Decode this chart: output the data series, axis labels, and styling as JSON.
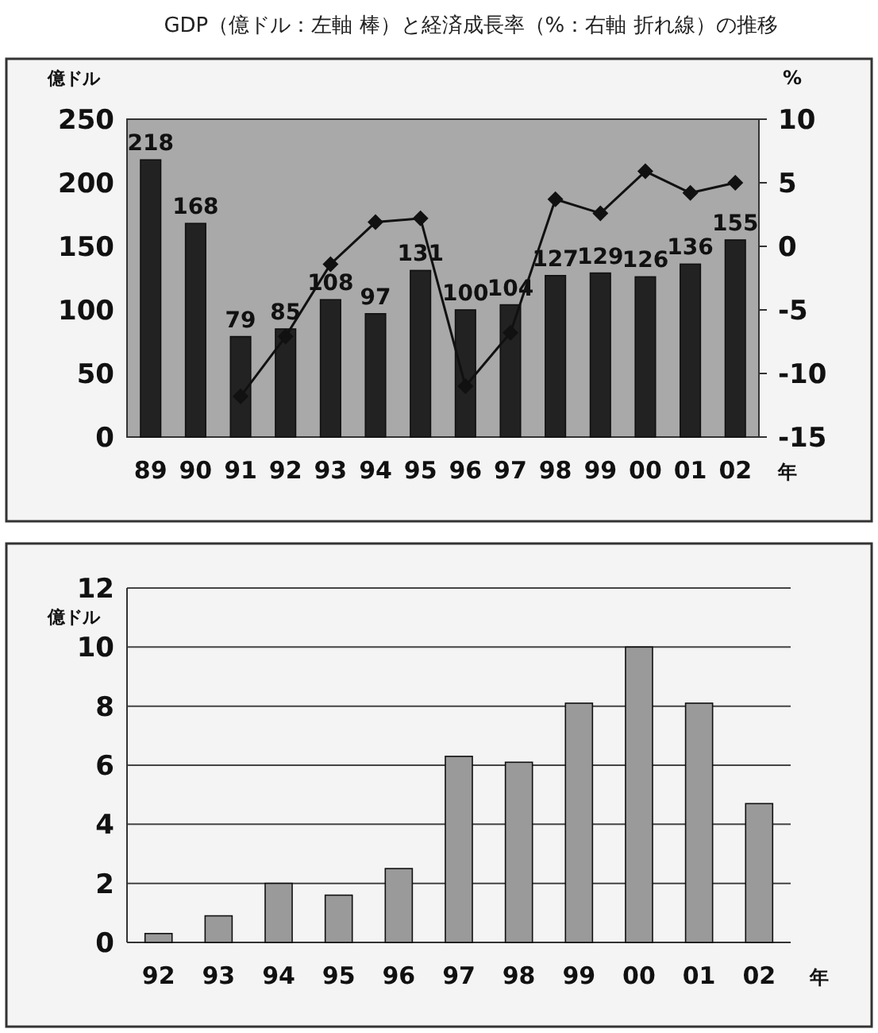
{
  "chart_data": [
    {
      "type": "bar",
      "title": "GDP（億ドル：左軸 棒）と経済成長率（%：右軸 折れ線）の推移",
      "ylabel": "億ドル",
      "y2label": "%",
      "xlabel": "年",
      "categories": [
        "89",
        "90",
        "91",
        "92",
        "93",
        "94",
        "95",
        "96",
        "97",
        "98",
        "99",
        "00",
        "01",
        "02"
      ],
      "series": [
        {
          "color": "#222222",
          "values": [
            218,
            168,
            79,
            85,
            108,
            97,
            131,
            100,
            104,
            127,
            129,
            126,
            136,
            155
          ],
          "value_labels": [
            "218",
            "168",
            "79",
            "85",
            "108",
            "97",
            "131",
            "100",
            "104",
            "127",
            "129",
            "126",
            "136",
            "155"
          ]
        },
        {
          "type": "line",
          "axis": "y2",
          "color": "#111111",
          "marker": "diamond",
          "values": [
            null,
            null,
            -11.8,
            -7.1,
            -1.4,
            1.9,
            2.2,
            -11.0,
            -6.8,
            3.7,
            2.6,
            5.9,
            4.2,
            5.0
          ]
        }
      ],
      "ylim": [
        0,
        250
      ],
      "yticks": [
        0,
        50,
        100,
        150,
        200,
        250
      ],
      "y2lim": [
        -15,
        10
      ],
      "y2ticks": [
        -15,
        -10,
        -5,
        0,
        5,
        10
      ],
      "grid": false
    },
    {
      "type": "bar",
      "ylabel": "億ドル",
      "xlabel": "年",
      "categories": [
        "92",
        "93",
        "94",
        "95",
        "96",
        "97",
        "98",
        "99",
        "00",
        "01",
        "02"
      ],
      "series": [
        {
          "color": "#9a9a9a",
          "values": [
            0.3,
            0.9,
            2.0,
            1.6,
            2.5,
            6.3,
            6.1,
            8.1,
            10.0,
            8.1,
            4.7
          ]
        }
      ],
      "ylim": [
        0,
        12
      ],
      "yticks": [
        0,
        2,
        4,
        6,
        8,
        10,
        12
      ],
      "grid": "y"
    }
  ]
}
